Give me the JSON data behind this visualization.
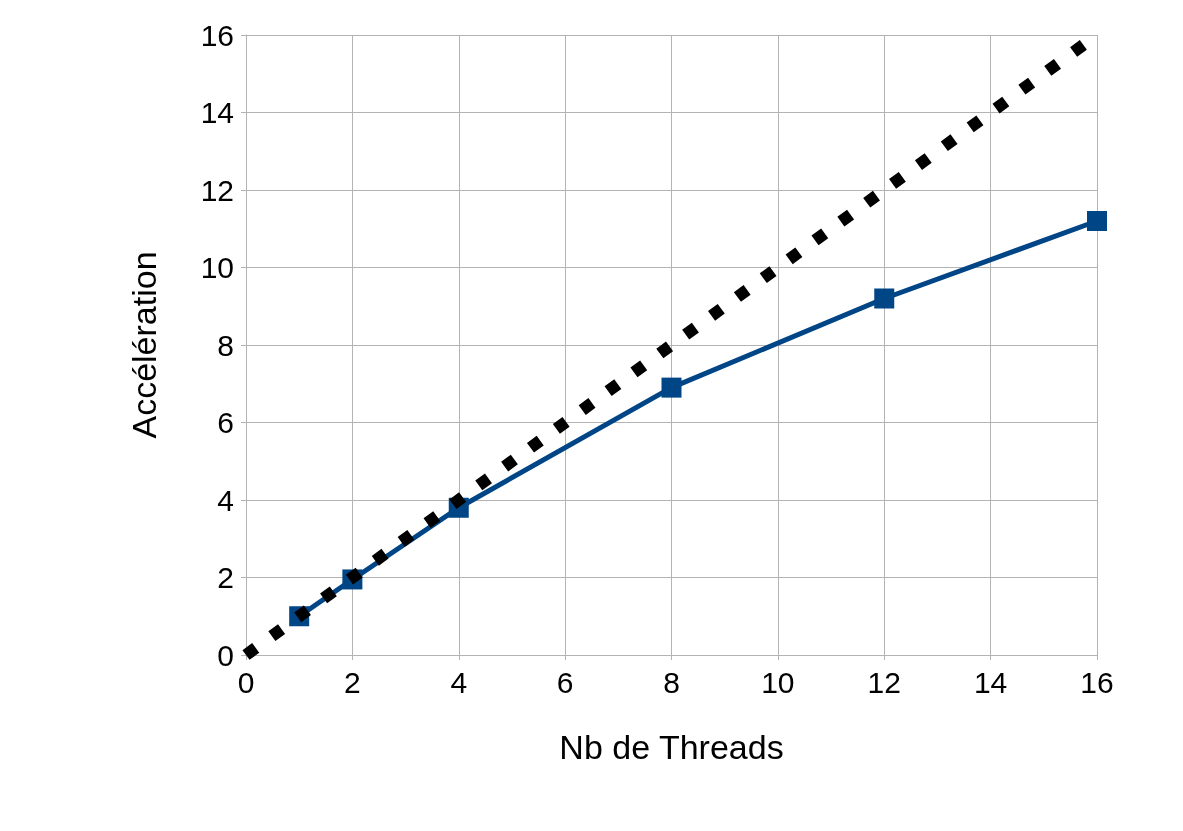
{
  "chart_data": {
    "type": "line",
    "xlabel": "Nb de Threads",
    "ylabel": "Accélération",
    "xlim": [
      0,
      16
    ],
    "xticks": [
      0,
      2,
      4,
      6,
      8,
      10,
      12,
      14,
      16
    ],
    "ylim": [
      0,
      16
    ],
    "yticks": [
      0,
      2,
      4,
      6,
      8,
      10,
      12,
      14,
      16
    ],
    "grid": true,
    "series": [
      {
        "color": "#004586",
        "x": [
          1,
          2,
          4,
          8,
          12,
          16
        ],
        "values": [
          1,
          1.95,
          3.8,
          6.9,
          9.2,
          11.2
        ],
        "marker": "square",
        "line_style": "solid"
      },
      {
        "color": "#000000",
        "x": [
          0,
          16
        ],
        "values": [
          0,
          16
        ],
        "marker": "none",
        "line_style": "dotted"
      }
    ]
  }
}
